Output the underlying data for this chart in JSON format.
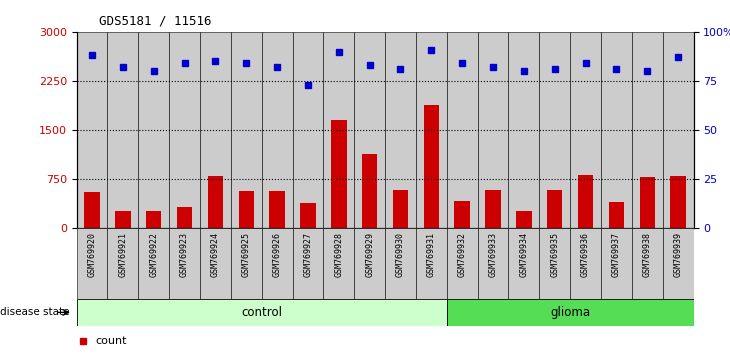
{
  "title": "GDS5181 / 11516",
  "samples": [
    "GSM769920",
    "GSM769921",
    "GSM769922",
    "GSM769923",
    "GSM769924",
    "GSM769925",
    "GSM769926",
    "GSM769927",
    "GSM769928",
    "GSM769929",
    "GSM769930",
    "GSM769931",
    "GSM769932",
    "GSM769933",
    "GSM769934",
    "GSM769935",
    "GSM769936",
    "GSM769937",
    "GSM769938",
    "GSM769939"
  ],
  "counts": [
    550,
    270,
    270,
    320,
    800,
    570,
    570,
    390,
    1650,
    1130,
    580,
    1880,
    420,
    590,
    270,
    590,
    820,
    400,
    790,
    800
  ],
  "percentile_ranks": [
    88,
    82,
    80,
    84,
    85,
    84,
    82,
    73,
    90,
    83,
    81,
    91,
    84,
    82,
    80,
    81,
    84,
    81,
    80,
    87
  ],
  "ylim_left": [
    0,
    3000
  ],
  "ylim_right": [
    0,
    100
  ],
  "yticks_left": [
    0,
    750,
    1500,
    2250,
    3000
  ],
  "yticks_right": [
    0,
    25,
    50,
    75,
    100
  ],
  "bar_color": "#cc0000",
  "dot_color": "#0000cc",
  "control_color": "#ccffcc",
  "glioma_color": "#55dd55",
  "cell_bg_color": "#cccccc",
  "plot_bg_color": "#ffffff",
  "n_control": 12,
  "n_glioma": 8
}
